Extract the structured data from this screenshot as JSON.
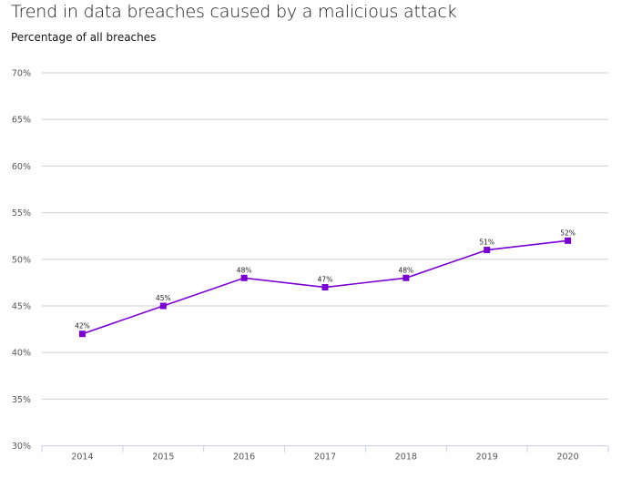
{
  "chart_data": {
    "type": "line",
    "title": "Trend in data breaches caused by a malicious attack",
    "subtitle": "Percentage of all breaches",
    "xlabel": "",
    "ylabel": "",
    "categories": [
      "2014",
      "2015",
      "2016",
      "2017",
      "2018",
      "2019",
      "2020"
    ],
    "series": [
      {
        "name": "Malicious attack",
        "values": [
          42,
          45,
          48,
          47,
          48,
          51,
          52
        ],
        "color": "#7b00d4"
      }
    ],
    "data_labels": [
      "42%",
      "45%",
      "48%",
      "47%",
      "48%",
      "51%",
      "52%"
    ],
    "ylim": [
      30,
      70
    ],
    "yticks": [
      30,
      35,
      40,
      45,
      50,
      55,
      60,
      65,
      70
    ],
    "ytick_labels": [
      "30%",
      "35%",
      "40%",
      "45%",
      "50%",
      "55%",
      "60%",
      "65%",
      "70%"
    ],
    "grid": true,
    "legend": "none"
  }
}
